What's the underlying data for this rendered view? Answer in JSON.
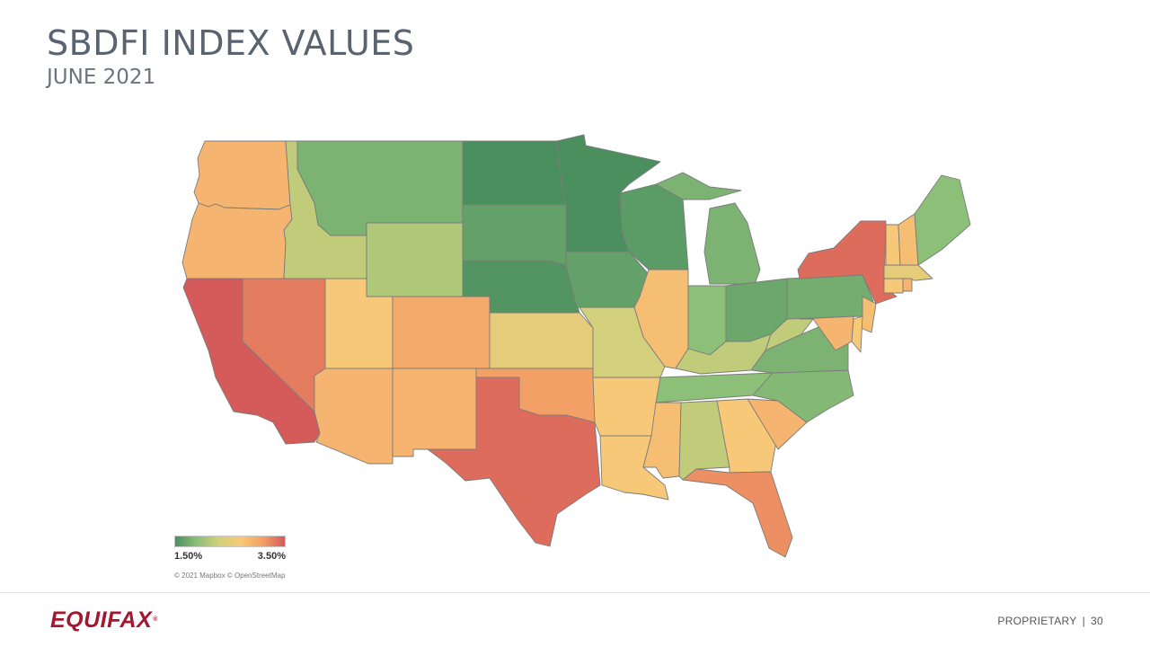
{
  "header": {
    "title": "SBDFI INDEX VALUES",
    "subtitle": "JUNE 2021"
  },
  "legend": {
    "min_label": "1.50%",
    "max_label": "3.50%",
    "min_value": 1.5,
    "max_value": 3.5,
    "color_stops": [
      "#4b8f5f",
      "#8cbf78",
      "#d2d07c",
      "#f7c877",
      "#f3a066",
      "#d55a5a"
    ]
  },
  "attribution": "© 2021 Mapbox © OpenStreetMap",
  "footer": {
    "logo_text": "EQUIFAX",
    "logo_mark": "®",
    "label": "PROPRIETARY",
    "separator": "|",
    "page_number": "30"
  },
  "map_data": {
    "metric": "SBDFI index value (%)",
    "states": [
      {
        "code": "WA",
        "name": "Washington",
        "value": 2.9
      },
      {
        "code": "OR",
        "name": "Oregon",
        "value": 2.9
      },
      {
        "code": "CA",
        "name": "California",
        "value": 3.5
      },
      {
        "code": "NV",
        "name": "Nevada",
        "value": 3.3
      },
      {
        "code": "ID",
        "name": "Idaho",
        "value": 2.2
      },
      {
        "code": "MT",
        "name": "Montana",
        "value": 1.8
      },
      {
        "code": "WY",
        "name": "Wyoming",
        "value": 2.1
      },
      {
        "code": "UT",
        "name": "Utah",
        "value": 2.7
      },
      {
        "code": "AZ",
        "name": "Arizona",
        "value": 2.9
      },
      {
        "code": "CO",
        "name": "Colorado",
        "value": 3.0
      },
      {
        "code": "NM",
        "name": "New Mexico",
        "value": 2.9
      },
      {
        "code": "ND",
        "name": "North Dakota",
        "value": 1.5
      },
      {
        "code": "SD",
        "name": "South Dakota",
        "value": 1.65
      },
      {
        "code": "NE",
        "name": "Nebraska",
        "value": 1.55
      },
      {
        "code": "KS",
        "name": "Kansas",
        "value": 2.5
      },
      {
        "code": "OK",
        "name": "Oklahoma",
        "value": 3.1
      },
      {
        "code": "TX",
        "name": "Texas",
        "value": 3.4
      },
      {
        "code": "MN",
        "name": "Minnesota",
        "value": 1.5
      },
      {
        "code": "IA",
        "name": "Iowa",
        "value": 1.65
      },
      {
        "code": "MO",
        "name": "Missouri",
        "value": 2.3
      },
      {
        "code": "AR",
        "name": "Arkansas",
        "value": 2.7
      },
      {
        "code": "LA",
        "name": "Louisiana",
        "value": 2.7
      },
      {
        "code": "WI",
        "name": "Wisconsin",
        "value": 1.6
      },
      {
        "code": "IL",
        "name": "Illinois",
        "value": 2.8
      },
      {
        "code": "MI",
        "name": "Michigan",
        "value": 1.8
      },
      {
        "code": "IN",
        "name": "Indiana",
        "value": 1.9
      },
      {
        "code": "OH",
        "name": "Ohio",
        "value": 1.7
      },
      {
        "code": "KY",
        "name": "Kentucky",
        "value": 2.2
      },
      {
        "code": "TN",
        "name": "Tennessee",
        "value": 1.9
      },
      {
        "code": "MS",
        "name": "Mississippi",
        "value": 2.8
      },
      {
        "code": "AL",
        "name": "Alabama",
        "value": 2.2
      },
      {
        "code": "GA",
        "name": "Georgia",
        "value": 2.7
      },
      {
        "code": "FL",
        "name": "Florida",
        "value": 3.2
      },
      {
        "code": "SC",
        "name": "South Carolina",
        "value": 2.9
      },
      {
        "code": "NC",
        "name": "North Carolina",
        "value": 1.85
      },
      {
        "code": "VA",
        "name": "Virginia",
        "value": 1.8
      },
      {
        "code": "WV",
        "name": "West Virginia",
        "value": 2.2
      },
      {
        "code": "PA",
        "name": "Pennsylvania",
        "value": 1.75
      },
      {
        "code": "NY",
        "name": "New York",
        "value": 3.4
      },
      {
        "code": "NJ",
        "name": "New Jersey",
        "value": 2.8
      },
      {
        "code": "DE",
        "name": "Delaware",
        "value": 2.7
      },
      {
        "code": "MD",
        "name": "Maryland",
        "value": 2.9
      },
      {
        "code": "VT",
        "name": "Vermont",
        "value": 2.7
      },
      {
        "code": "NH",
        "name": "New Hampshire",
        "value": 2.8
      },
      {
        "code": "ME",
        "name": "Maine",
        "value": 1.9
      },
      {
        "code": "MA",
        "name": "Massachusetts",
        "value": 2.5
      },
      {
        "code": "CT",
        "name": "Connecticut",
        "value": 2.7
      },
      {
        "code": "RI",
        "name": "Rhode Island",
        "value": 2.9
      }
    ]
  }
}
